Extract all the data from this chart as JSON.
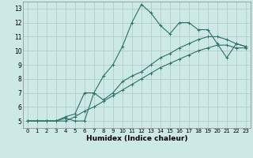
{
  "xlabel": "Humidex (Indice chaleur)",
  "background_color": "#cce9e6",
  "grid_color": "#b0cdca",
  "line_color": "#2d7068",
  "x_data": [
    0,
    1,
    2,
    3,
    4,
    5,
    6,
    7,
    8,
    9,
    10,
    11,
    12,
    13,
    14,
    15,
    16,
    17,
    18,
    19,
    20,
    21,
    22,
    23
  ],
  "line1": [
    5.0,
    5.0,
    5.0,
    5.0,
    5.2,
    5.0,
    5.0,
    7.0,
    8.2,
    9.0,
    10.3,
    12.0,
    13.3,
    12.7,
    11.8,
    11.2,
    12.0,
    12.0,
    11.5,
    11.5,
    10.5,
    9.5,
    10.5,
    10.3
  ],
  "line2": [
    5.0,
    5.0,
    5.0,
    5.0,
    5.3,
    5.5,
    7.0,
    7.0,
    6.5,
    7.0,
    7.8,
    8.2,
    8.5,
    9.0,
    9.5,
    9.8,
    10.2,
    10.5,
    10.8,
    11.0,
    11.0,
    10.8,
    10.5,
    10.3
  ],
  "line3": [
    5.0,
    5.0,
    5.0,
    5.0,
    5.0,
    5.3,
    5.7,
    6.0,
    6.4,
    6.8,
    7.2,
    7.6,
    8.0,
    8.4,
    8.8,
    9.1,
    9.4,
    9.7,
    10.0,
    10.2,
    10.4,
    10.4,
    10.2,
    10.2
  ],
  "xlim": [
    -0.5,
    23.5
  ],
  "ylim": [
    4.5,
    13.5
  ],
  "yticks": [
    5,
    6,
    7,
    8,
    9,
    10,
    11,
    12,
    13
  ],
  "xticks": [
    0,
    1,
    2,
    3,
    4,
    5,
    6,
    7,
    8,
    9,
    10,
    11,
    12,
    13,
    14,
    15,
    16,
    17,
    18,
    19,
    20,
    21,
    22,
    23
  ]
}
